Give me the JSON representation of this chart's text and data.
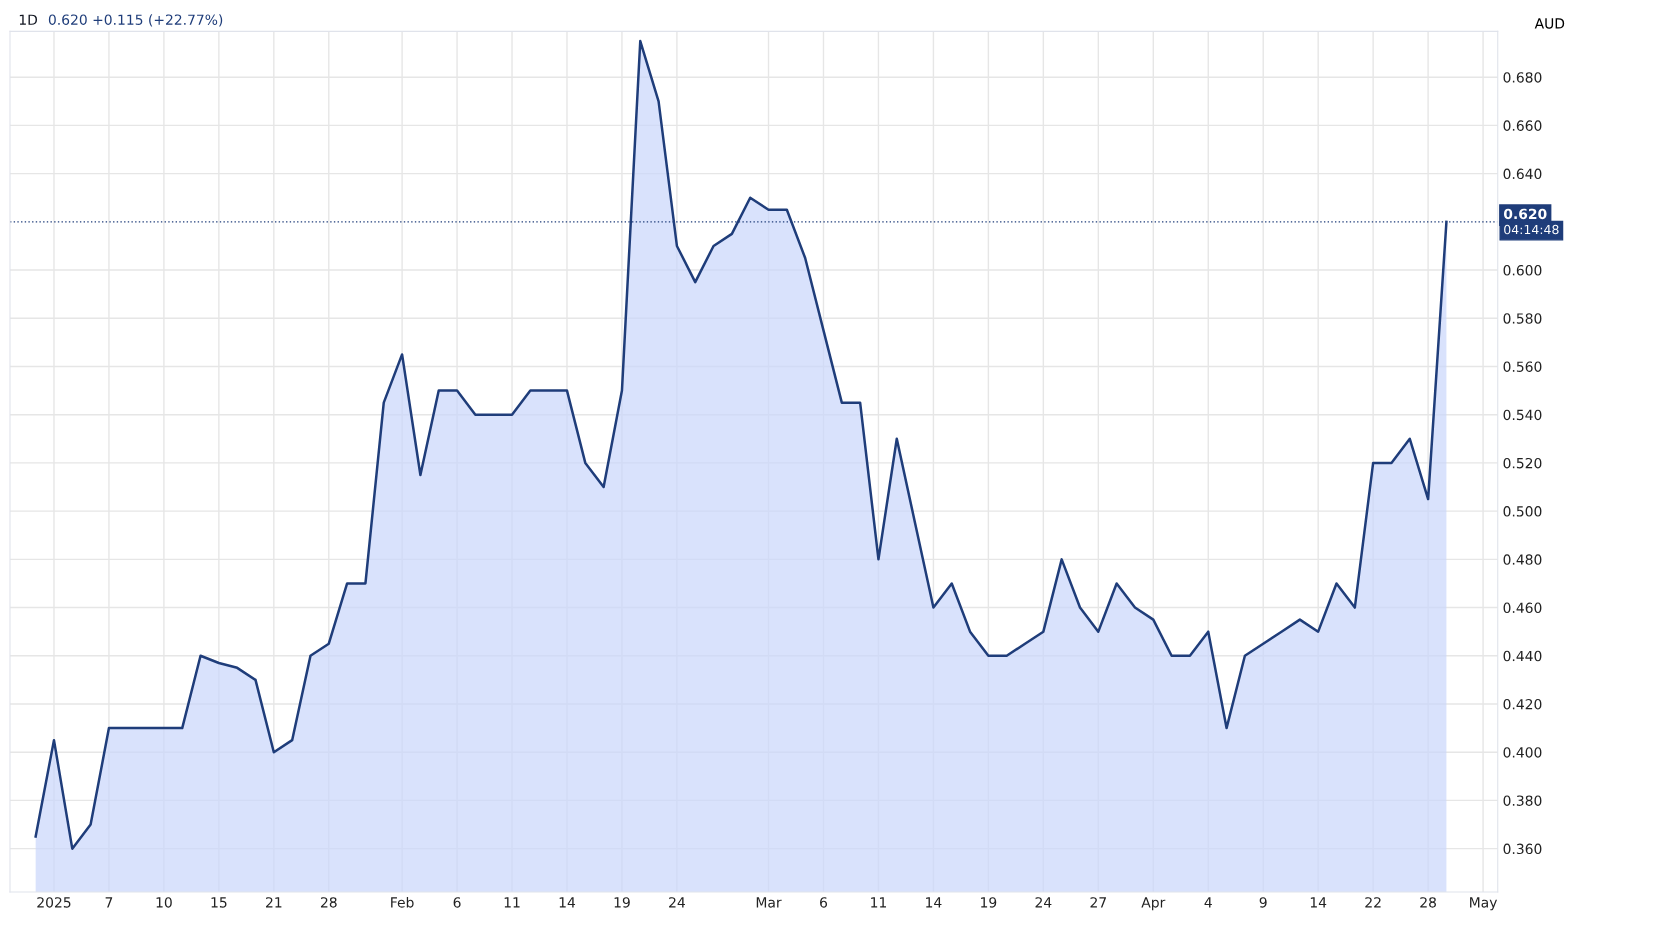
{
  "chart_data": {
    "type": "area",
    "title": "1D",
    "subtitle": "0.620 +0.115 (+22.77%)",
    "ylabel": "AUD",
    "categories": [
      null,
      "2025",
      null,
      null,
      "7",
      null,
      null,
      "10",
      null,
      null,
      "15",
      null,
      null,
      "21",
      null,
      null,
      "28",
      null,
      null,
      null,
      "Feb",
      null,
      null,
      "6",
      null,
      null,
      "11",
      null,
      null,
      "14",
      null,
      null,
      "19",
      null,
      null,
      "24",
      null,
      null,
      null,
      null,
      "Mar",
      null,
      null,
      "6",
      null,
      null,
      "11",
      null,
      null,
      "14",
      null,
      null,
      "19",
      null,
      null,
      "24",
      null,
      null,
      "27",
      null,
      null,
      "Apr",
      null,
      null,
      "4",
      null,
      null,
      "9",
      null,
      null,
      "14",
      null,
      null,
      "22",
      null,
      null,
      "28",
      null,
      null,
      "May"
    ],
    "series": [
      {
        "color": "#1f3d7a",
        "values": [
          0.365,
          0.405,
          0.36,
          0.37,
          0.41,
          0.41,
          0.41,
          0.41,
          0.41,
          0.44,
          0.437,
          0.435,
          0.43,
          0.4,
          0.405,
          0.44,
          0.445,
          0.47,
          0.47,
          0.545,
          0.565,
          0.515,
          0.55,
          0.55,
          0.54,
          0.54,
          0.54,
          0.55,
          0.55,
          0.55,
          0.52,
          0.51,
          0.55,
          0.695,
          0.67,
          0.61,
          0.595,
          0.61,
          0.615,
          0.63,
          0.625,
          0.625,
          0.605,
          0.575,
          0.545,
          0.545,
          0.48,
          0.53,
          0.495,
          0.46,
          0.47,
          0.45,
          0.44,
          0.44,
          0.445,
          0.45,
          0.48,
          0.46,
          0.45,
          0.47,
          0.46,
          0.455,
          0.44,
          0.44,
          0.45,
          0.41,
          0.44,
          0.445,
          0.45,
          0.455,
          0.45,
          0.47,
          0.46,
          0.52,
          0.52,
          0.53,
          0.505,
          0.62,
          null,
          null
        ]
      }
    ],
    "ylim": [
      0.342,
      0.699
    ],
    "yticks": [
      {
        "value": 0.36,
        "label": "0.360"
      },
      {
        "value": 0.38,
        "label": "0.380"
      },
      {
        "value": 0.4,
        "label": "0.400"
      },
      {
        "value": 0.42,
        "label": "0.420"
      },
      {
        "value": 0.44,
        "label": "0.440"
      },
      {
        "value": 0.46,
        "label": "0.460"
      },
      {
        "value": 0.48,
        "label": "0.480"
      },
      {
        "value": 0.5,
        "label": "0.500"
      },
      {
        "value": 0.52,
        "label": "0.520"
      },
      {
        "value": 0.54,
        "label": "0.540"
      },
      {
        "value": 0.56,
        "label": "0.560"
      },
      {
        "value": 0.58,
        "label": "0.580"
      },
      {
        "value": 0.6,
        "label": "0.600"
      },
      {
        "value": 0.64,
        "label": "0.640"
      },
      {
        "value": 0.66,
        "label": "0.660"
      },
      {
        "value": 0.68,
        "label": "0.680"
      }
    ],
    "ref_lines": [
      {
        "axis": "y",
        "value": 0.62,
        "label": "0.620",
        "color": "#1f3d7a",
        "line_style": "dotted"
      }
    ],
    "annotations": [
      "04:14:48"
    ],
    "grid": true
  }
}
